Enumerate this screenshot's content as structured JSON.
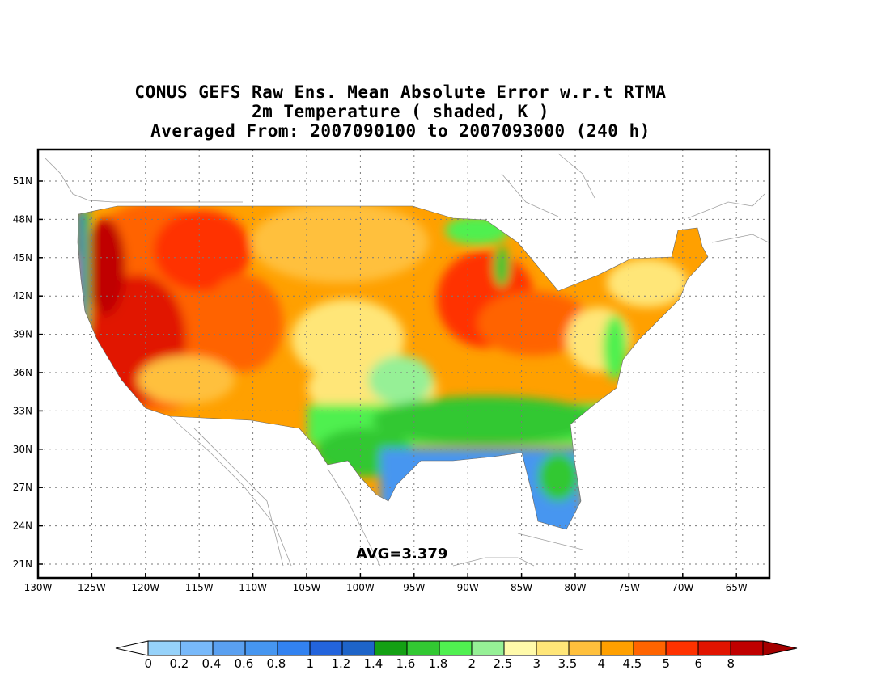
{
  "title": {
    "line1": "CONUS GEFS Raw Ens. Mean Absolute Error w.r.t RTMA",
    "line2": "2m Temperature ( shaded, K )",
    "line3": "Averaged From: 2007090100 to 2007093000 (240 h)"
  },
  "axes": {
    "lat_labels": [
      "51N",
      "48N",
      "45N",
      "42N",
      "39N",
      "36N",
      "33N",
      "30N",
      "27N",
      "24N",
      "21N"
    ],
    "lon_labels": [
      "130W",
      "125W",
      "120W",
      "115W",
      "110W",
      "105W",
      "100W",
      "95W",
      "90W",
      "85W",
      "80W",
      "75W",
      "70W",
      "65W"
    ]
  },
  "statistic": {
    "avg_text": "AVG=3.379",
    "avg_value": 3.379
  },
  "colorbar": {
    "labels": [
      "0",
      "0.2",
      "0.4",
      "0.6",
      "0.8",
      "1",
      "1.2",
      "1.4",
      "1.6",
      "1.8",
      "2",
      "2.5",
      "3",
      "3.5",
      "4",
      "4.5",
      "5",
      "6",
      "8"
    ],
    "colors": [
      "#96d2fa",
      "#78b9fa",
      "#5aa0f0",
      "#4696f0",
      "#3282f0",
      "#2364dc",
      "#1e64c8",
      "#14a014",
      "#32c832",
      "#50f050",
      "#96f096",
      "#fffaaa",
      "#ffe678",
      "#ffc03c",
      "#ffa000",
      "#ff6400",
      "#ff3200",
      "#e11400",
      "#c00000"
    ],
    "under_color": "#ffffff",
    "over_color": "#a50000"
  },
  "chart_data": {
    "type": "heatmap",
    "variable": "2m Temperature ( shaded, K )",
    "xrange": [
      -130,
      -63
    ],
    "yrange": [
      20,
      53
    ],
    "grid": true,
    "summary": {
      "avg": 3.379
    }
  }
}
